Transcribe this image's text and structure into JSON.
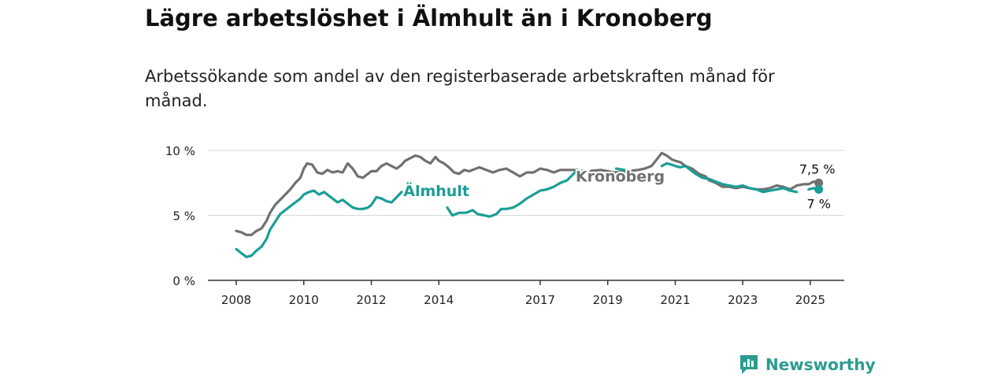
{
  "title": "Lägre arbetslöshet i Älmhult än i Kronoberg",
  "subtitle": "Arbetssökande som andel av den registerbaserade arbetskraften månad för månad.",
  "brand": {
    "name": "Newsworthy",
    "color": "#2a9d8f"
  },
  "chart_data": {
    "type": "line",
    "ylim": [
      0,
      10
    ],
    "xlim": [
      2008,
      2026
    ],
    "yticks": [
      {
        "value": 0,
        "label": "0 %"
      },
      {
        "value": 5,
        "label": "5 %"
      },
      {
        "value": 10,
        "label": "10 %"
      }
    ],
    "xticks": [
      {
        "value": 2008,
        "label": "2008"
      },
      {
        "value": 2010,
        "label": "2010"
      },
      {
        "value": 2012,
        "label": "2012"
      },
      {
        "value": 2014,
        "label": "2014"
      },
      {
        "value": 2017,
        "label": "2017"
      },
      {
        "value": 2019,
        "label": "2019"
      },
      {
        "value": 2021,
        "label": "2021"
      },
      {
        "value": 2023,
        "label": "2023"
      },
      {
        "value": 2025,
        "label": "2025"
      }
    ],
    "grid": true,
    "series": [
      {
        "name": "Kronoberg",
        "color": "#707070",
        "end_label": "7,5 %",
        "points": [
          [
            2008.0,
            3.8
          ],
          [
            2008.15,
            3.7
          ],
          [
            2008.3,
            3.5
          ],
          [
            2008.45,
            3.5
          ],
          [
            2008.6,
            3.8
          ],
          [
            2008.75,
            4.0
          ],
          [
            2008.9,
            4.6
          ],
          [
            2009.0,
            5.2
          ],
          [
            2009.15,
            5.8
          ],
          [
            2009.3,
            6.2
          ],
          [
            2009.45,
            6.6
          ],
          [
            2009.6,
            7.0
          ],
          [
            2009.75,
            7.5
          ],
          [
            2009.9,
            7.9
          ],
          [
            2010.0,
            8.6
          ],
          [
            2010.1,
            9.0
          ],
          [
            2010.25,
            8.9
          ],
          [
            2010.4,
            8.3
          ],
          [
            2010.55,
            8.2
          ],
          [
            2010.7,
            8.5
          ],
          [
            2010.85,
            8.3
          ],
          [
            2011.0,
            8.4
          ],
          [
            2011.15,
            8.3
          ],
          [
            2011.3,
            9.0
          ],
          [
            2011.45,
            8.6
          ],
          [
            2011.6,
            8.0
          ],
          [
            2011.75,
            7.9
          ],
          [
            2011.9,
            8.2
          ],
          [
            2012.0,
            8.4
          ],
          [
            2012.15,
            8.4
          ],
          [
            2012.3,
            8.8
          ],
          [
            2012.45,
            9.0
          ],
          [
            2012.6,
            8.8
          ],
          [
            2012.75,
            8.6
          ],
          [
            2012.9,
            8.9
          ],
          [
            2013.0,
            9.2
          ],
          [
            2013.15,
            9.4
          ],
          [
            2013.3,
            9.6
          ],
          [
            2013.45,
            9.5
          ],
          [
            2013.6,
            9.2
          ],
          [
            2013.75,
            9.0
          ],
          [
            2013.9,
            9.5
          ],
          [
            2014.0,
            9.2
          ],
          [
            2014.15,
            9.0
          ],
          [
            2014.3,
            8.7
          ],
          [
            2014.45,
            8.3
          ],
          [
            2014.6,
            8.2
          ],
          [
            2014.75,
            8.5
          ],
          [
            2014.9,
            8.4
          ],
          [
            2015.0,
            8.5
          ],
          [
            2015.2,
            8.7
          ],
          [
            2015.4,
            8.5
          ],
          [
            2015.6,
            8.3
          ],
          [
            2015.8,
            8.5
          ],
          [
            2016.0,
            8.6
          ],
          [
            2016.2,
            8.3
          ],
          [
            2016.4,
            8.0
          ],
          [
            2016.6,
            8.3
          ],
          [
            2016.8,
            8.3
          ],
          [
            2017.0,
            8.6
          ],
          [
            2017.2,
            8.5
          ],
          [
            2017.4,
            8.3
          ],
          [
            2017.6,
            8.5
          ],
          [
            2018.0,
            8.5
          ],
          [
            2018.4,
            8.4
          ],
          [
            2018.8,
            8.5
          ],
          [
            2019.2,
            8.3
          ],
          [
            2019.6,
            8.4
          ],
          [
            2019.9,
            8.5
          ],
          [
            2020.1,
            8.6
          ],
          [
            2020.3,
            8.8
          ],
          [
            2020.45,
            9.3
          ],
          [
            2020.6,
            9.8
          ],
          [
            2020.75,
            9.6
          ],
          [
            2020.9,
            9.3
          ],
          [
            2021.0,
            9.2
          ],
          [
            2021.15,
            9.1
          ],
          [
            2021.3,
            8.8
          ],
          [
            2021.5,
            8.6
          ],
          [
            2021.7,
            8.2
          ],
          [
            2021.9,
            8.0
          ],
          [
            2022.0,
            7.7
          ],
          [
            2022.2,
            7.5
          ],
          [
            2022.4,
            7.2
          ],
          [
            2022.6,
            7.2
          ],
          [
            2022.8,
            7.1
          ],
          [
            2023.0,
            7.2
          ],
          [
            2023.2,
            7.1
          ],
          [
            2023.4,
            7.0
          ],
          [
            2023.6,
            7.0
          ],
          [
            2023.8,
            7.1
          ],
          [
            2024.0,
            7.3
          ],
          [
            2024.2,
            7.2
          ],
          [
            2024.4,
            7.0
          ],
          [
            2024.6,
            7.3
          ],
          [
            2024.8,
            7.4
          ],
          [
            2024.95,
            7.4
          ],
          [
            2025.1,
            7.6
          ],
          [
            2025.25,
            7.5
          ]
        ]
      },
      {
        "name": "Älmhult",
        "color": "#1a9e96",
        "end_label": "7 %",
        "points": [
          [
            2008.0,
            2.4
          ],
          [
            2008.15,
            2.1
          ],
          [
            2008.3,
            1.8
          ],
          [
            2008.45,
            1.9
          ],
          [
            2008.6,
            2.3
          ],
          [
            2008.75,
            2.6
          ],
          [
            2008.9,
            3.2
          ],
          [
            2009.0,
            3.9
          ],
          [
            2009.15,
            4.5
          ],
          [
            2009.3,
            5.1
          ],
          [
            2009.45,
            5.4
          ],
          [
            2009.6,
            5.7
          ],
          [
            2009.75,
            6.0
          ],
          [
            2009.9,
            6.3
          ],
          [
            2010.0,
            6.6
          ],
          [
            2010.15,
            6.8
          ],
          [
            2010.3,
            6.9
          ],
          [
            2010.45,
            6.6
          ],
          [
            2010.6,
            6.8
          ],
          [
            2010.75,
            6.5
          ],
          [
            2010.9,
            6.2
          ],
          [
            2011.0,
            6.0
          ],
          [
            2011.15,
            6.2
          ],
          [
            2011.3,
            5.9
          ],
          [
            2011.45,
            5.6
          ],
          [
            2011.6,
            5.5
          ],
          [
            2011.75,
            5.5
          ],
          [
            2011.9,
            5.6
          ],
          [
            2012.0,
            5.8
          ],
          [
            2012.15,
            6.4
          ],
          [
            2012.3,
            6.3
          ],
          [
            2012.45,
            6.1
          ],
          [
            2012.6,
            6.0
          ],
          [
            2012.75,
            6.4
          ],
          [
            2012.9,
            6.8
          ],
          [
            2014.25,
            5.6
          ],
          [
            2014.4,
            5.0
          ],
          [
            2014.6,
            5.2
          ],
          [
            2014.8,
            5.2
          ],
          [
            2015.0,
            5.4
          ],
          [
            2015.15,
            5.1
          ],
          [
            2015.35,
            5.0
          ],
          [
            2015.5,
            4.9
          ],
          [
            2015.7,
            5.1
          ],
          [
            2015.85,
            5.5
          ],
          [
            2016.0,
            5.5
          ],
          [
            2016.2,
            5.6
          ],
          [
            2016.4,
            5.9
          ],
          [
            2016.6,
            6.3
          ],
          [
            2016.8,
            6.6
          ],
          [
            2017.0,
            6.9
          ],
          [
            2017.2,
            7.0
          ],
          [
            2017.4,
            7.2
          ],
          [
            2017.6,
            7.5
          ],
          [
            2017.8,
            7.7
          ],
          [
            2017.95,
            8.1
          ],
          [
            2018.1,
            8.5
          ],
          [
            2020.6,
            8.8
          ],
          [
            2020.75,
            9.0
          ],
          [
            2020.9,
            8.9
          ],
          [
            2021.0,
            8.8
          ],
          [
            2021.15,
            8.7
          ],
          [
            2021.3,
            8.8
          ],
          [
            2021.45,
            8.5
          ],
          [
            2021.6,
            8.2
          ],
          [
            2021.8,
            7.9
          ],
          [
            2022.0,
            7.8
          ],
          [
            2022.2,
            7.6
          ],
          [
            2022.4,
            7.4
          ],
          [
            2022.6,
            7.3
          ],
          [
            2022.8,
            7.2
          ],
          [
            2023.0,
            7.3
          ],
          [
            2023.2,
            7.1
          ],
          [
            2023.4,
            7.0
          ],
          [
            2023.6,
            6.8
          ],
          [
            2023.8,
            6.9
          ],
          [
            2024.0,
            7.0
          ],
          [
            2024.2,
            7.1
          ],
          [
            2024.4,
            6.9
          ],
          [
            2024.6,
            6.8
          ]
        ],
        "extra_segments": [
          [
            [
              2019.25,
              8.6
            ],
            [
              2019.5,
              8.5
            ]
          ],
          [
            [
              2024.95,
              7.0
            ],
            [
              2025.1,
              7.1
            ],
            [
              2025.25,
              7.0
            ]
          ]
        ]
      }
    ],
    "annotations": [
      {
        "text": "Kronoberg",
        "series": "Kronoberg",
        "x": 2018.05,
        "y": 7.6
      },
      {
        "text": "Älmhult",
        "series": "Älmhult",
        "x": 2012.95,
        "y": 6.5
      }
    ]
  }
}
